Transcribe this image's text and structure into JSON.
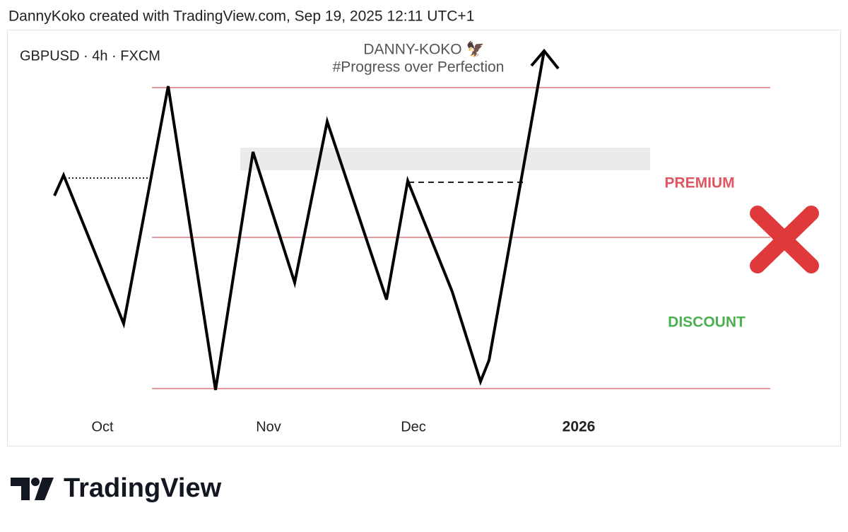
{
  "header": {
    "caption": "DannyKoko created with TradingView.com, Sep 19, 2025 12:11 UTC+1"
  },
  "chart": {
    "symbol": "GBPUSD · 4h · FXCM",
    "watermark": {
      "name": "DANNY-KOKO 🦅",
      "motto": "#Progress over Perfection"
    },
    "zones": {
      "premium": "PREMIUM",
      "discount": "DISCOUNT"
    },
    "x_labels": [
      "Oct",
      "Nov",
      "Dec",
      "2026"
    ]
  },
  "footer": {
    "brand": "TradingView"
  }
}
